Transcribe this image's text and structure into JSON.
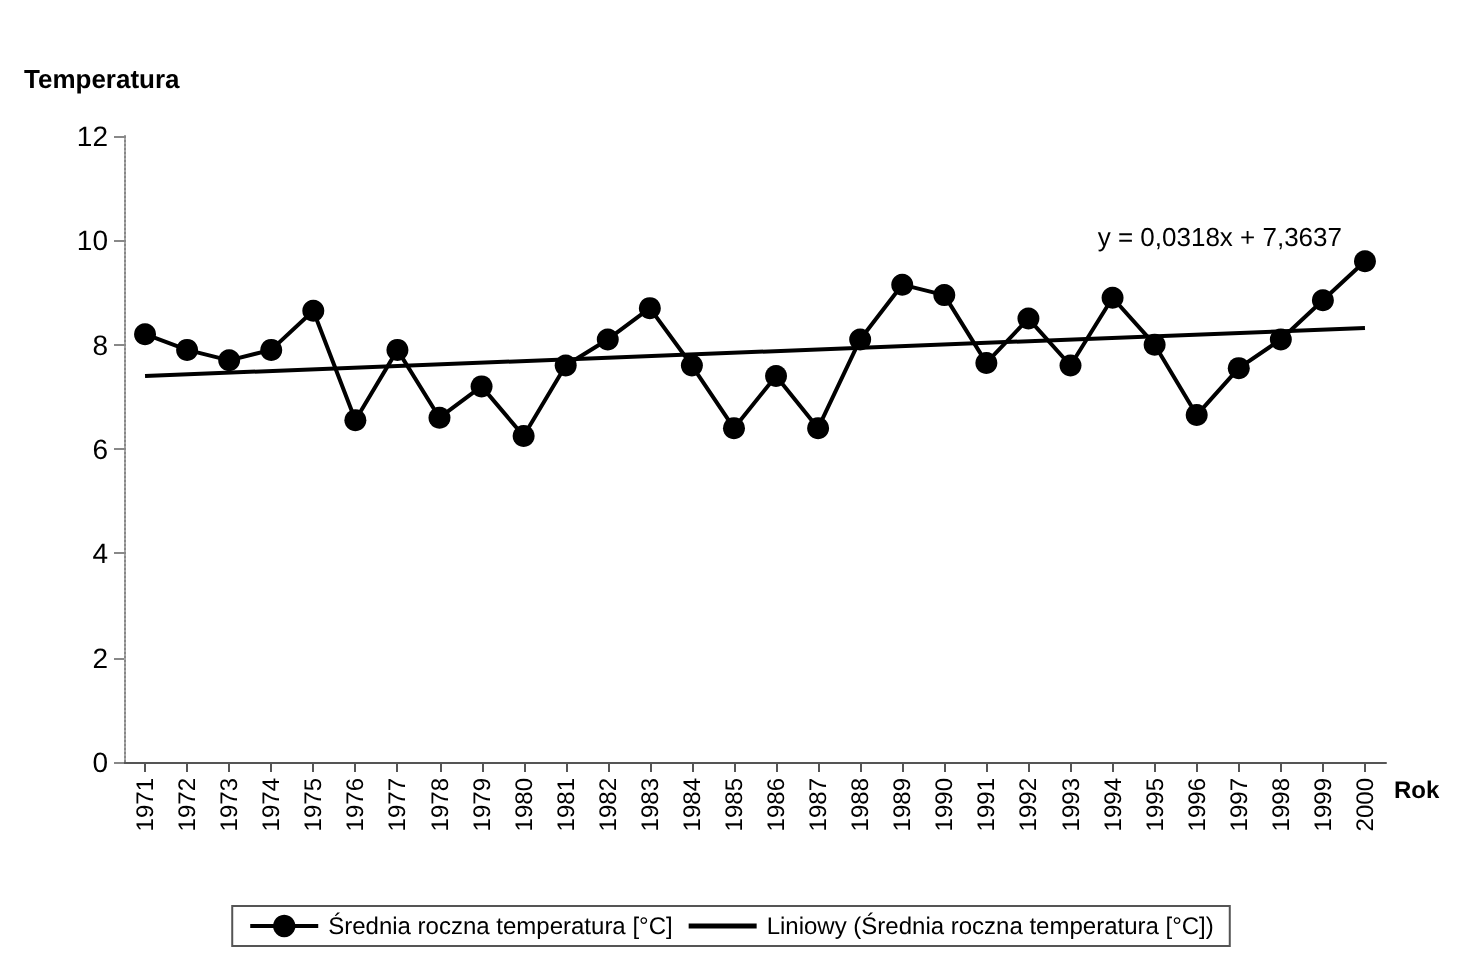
{
  "chart_data": {
    "type": "line",
    "ylabel": "Temperatura",
    "xlabel": "Rok",
    "categories": [
      "1971",
      "1972",
      "1973",
      "1974",
      "1975",
      "1976",
      "1977",
      "1978",
      "1979",
      "1980",
      "1981",
      "1982",
      "1983",
      "1984",
      "1985",
      "1986",
      "1987",
      "1988",
      "1989",
      "1990",
      "1991",
      "1992",
      "1993",
      "1994",
      "1995",
      "1996",
      "1997",
      "1998",
      "1999",
      "2000"
    ],
    "series": [
      {
        "name": "Średnia roczna temperatura [°C]",
        "color": "#000000",
        "marker": "circle",
        "values": [
          8.2,
          7.9,
          7.7,
          7.9,
          8.65,
          6.55,
          7.9,
          6.6,
          7.2,
          6.25,
          7.6,
          8.1,
          8.7,
          7.6,
          6.4,
          7.4,
          6.4,
          8.1,
          9.15,
          8.95,
          7.65,
          8.5,
          7.6,
          8.9,
          8.0,
          6.65,
          7.55,
          8.1,
          8.85,
          9.6
        ]
      },
      {
        "name": "Liniowy (Średnia roczna temperatura [°C])",
        "color": "#000000",
        "marker": "none",
        "values": [
          7.4,
          null,
          null,
          null,
          null,
          null,
          null,
          null,
          null,
          null,
          null,
          null,
          null,
          null,
          null,
          null,
          null,
          null,
          null,
          null,
          null,
          null,
          null,
          null,
          null,
          null,
          null,
          null,
          null,
          8.32
        ]
      }
    ],
    "annotations": [
      "y = 0,0318x + 7,3637"
    ],
    "ylim": [
      0,
      12
    ],
    "yticks": [
      0,
      2,
      4,
      6,
      8,
      10,
      12
    ],
    "grid": false,
    "legend": "bottom",
    "line_style": "solid"
  }
}
